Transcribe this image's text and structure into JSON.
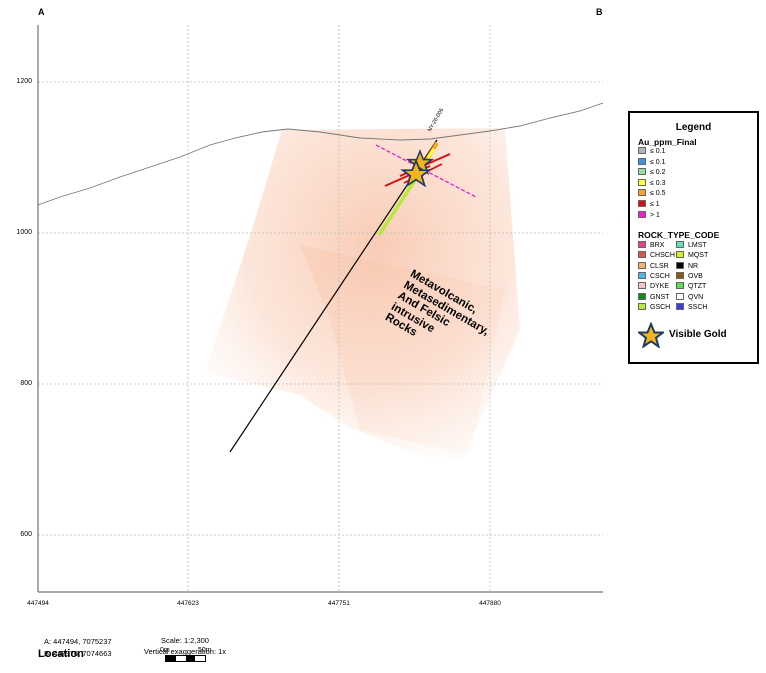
{
  "section": {
    "start_label": "A",
    "end_label": "B",
    "y_ticks": [
      "1200",
      "1000",
      "800",
      "600"
    ],
    "x_ticks": [
      "447494",
      "447623",
      "447751",
      "447880"
    ],
    "drillhole_label": "NY-26-006",
    "rock_label_lines": [
      "Metavolcanic,",
      "Metasedimentary,",
      "And Felsic",
      "intrusive",
      "Rocks"
    ]
  },
  "legend": {
    "title": "Legend",
    "au_heading": "Au_ppm_Final",
    "au_items": [
      {
        "label": "≤ 0.1",
        "color": "#b3b3b3"
      },
      {
        "label": "≤ 0.1",
        "color": "#3f8ee0"
      },
      {
        "label": "≤ 0.2",
        "color": "#8fe39c"
      },
      {
        "label": "≤ 0.3",
        "color": "#ffff33"
      },
      {
        "label": "≤ 0.5",
        "color": "#f5a623"
      },
      {
        "label": "≤ 1",
        "color": "#d90f0f"
      },
      {
        "label": "> 1",
        "color": "#f01bd9"
      }
    ],
    "rock_heading": "ROCK_TYPE_CODE",
    "rock_items_left": [
      {
        "label": "BRX",
        "color": "#e83e8c"
      },
      {
        "label": "CHSCH",
        "color": "#e0554a"
      },
      {
        "label": "CLSR",
        "color": "#f7b26b"
      },
      {
        "label": "CSCH",
        "color": "#49b8e6"
      },
      {
        "label": "DYKE",
        "color": "#f7c2c8"
      },
      {
        "label": "GNST",
        "color": "#128a1a"
      },
      {
        "label": "GSCH",
        "color": "#b5ea3a"
      }
    ],
    "rock_items_right": [
      {
        "label": "LMST",
        "color": "#5ee3b9"
      },
      {
        "label": "MQST",
        "color": "#d8f020"
      },
      {
        "label": "NR",
        "color": "#000000"
      },
      {
        "label": "OVB",
        "color": "#8a5a12"
      },
      {
        "label": "QTZT",
        "color": "#55e055"
      },
      {
        "label": "QVN",
        "color": "#ffffff"
      },
      {
        "label": "SSCH",
        "color": "#3e3ed6"
      }
    ],
    "visible_gold_label": "Visible Gold"
  },
  "location": {
    "title": "Location",
    "point_a": "A:   447494, 7075237",
    "point_b": "B:   447976, 7074663",
    "scale": "Scale: 1:2,300",
    "vertical_exaggeration": "Vertical exaggeration: 1x",
    "scalebar_start": "0m",
    "scalebar_end": "50m"
  },
  "colors": {
    "halo": "#f4a27b",
    "trace": "#000000",
    "gold_star_fill": "#f2b51b",
    "gold_star_stroke": "#1f3b66",
    "magenta_dash": "#e014c8",
    "red_interval": "#d90f0f",
    "green_interval": "#b5ea3a"
  }
}
